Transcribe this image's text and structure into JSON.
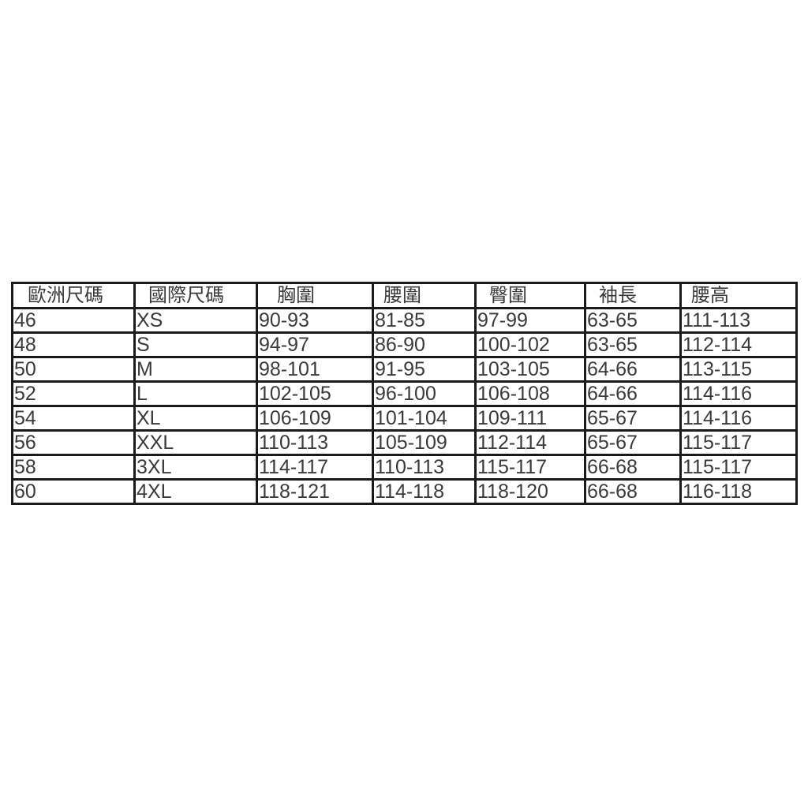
{
  "table": {
    "headers": [
      "歐洲尺碼",
      "國際尺碼",
      "胸圍",
      "腰圍",
      "臀圍",
      "袖長",
      "腰高"
    ],
    "rows": [
      [
        "46",
        "XS",
        "90-93",
        "81-85",
        "97-99",
        "63-65",
        "111-113"
      ],
      [
        "48",
        "S",
        "94-97",
        "86-90",
        "100-102",
        "63-65",
        "112-114"
      ],
      [
        "50",
        "M",
        "98-101",
        "91-95",
        "103-105",
        "64-66",
        "113-115"
      ],
      [
        "52",
        "L",
        "102-105",
        "96-100",
        "106-108",
        "64-66",
        "114-116"
      ],
      [
        "54",
        "XL",
        "106-109",
        "101-104",
        "109-111",
        "65-67",
        "114-116"
      ],
      [
        "56",
        "XXL",
        "110-113",
        "105-109",
        "112-114",
        "65-67",
        "115-117"
      ],
      [
        "58",
        "3XL",
        "114-117",
        "110-113",
        "115-117",
        "66-68",
        "115-117"
      ],
      [
        "60",
        "4XL",
        "118-121",
        "114-118",
        "118-120",
        "66-68",
        "116-118"
      ]
    ]
  }
}
